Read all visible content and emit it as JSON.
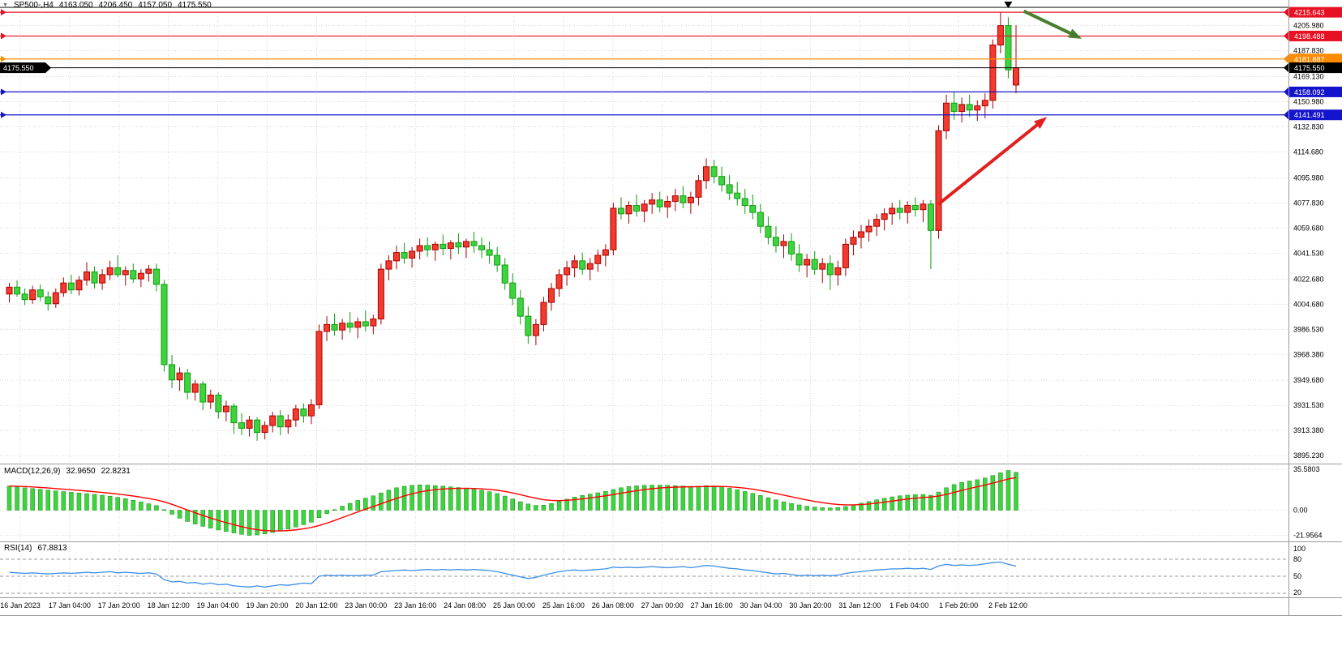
{
  "quote_bar": {
    "dropdown_icon": "▼",
    "symbol_period": "SP500-,H4",
    "open": "4163.050",
    "high": "4206.450",
    "low": "4157.050",
    "close": "4175.550"
  },
  "colors": {
    "bull": "#f23b2e",
    "bull_stroke": "#a80000",
    "bear": "#3fd43f",
    "bear_stroke": "#0e9c0e",
    "grid": "#d8d8d8",
    "separator": "#9a9a9a",
    "macd_histogram": "#3fd43f",
    "macd_histogram_stroke": "#128a12",
    "macd_signal": "#ff0000",
    "rsi_line": "#3b8fe8",
    "level_blue": "#1414cc",
    "level_red": "#e81123",
    "level_orange": "#ff8c00",
    "current_price_black": "#000000"
  },
  "chart_data": {
    "type": "candlestick",
    "symbol": "SP500-",
    "timeframe": "H4",
    "ohlc": [
      [
        4012,
        4020,
        4006,
        4017
      ],
      [
        4017,
        4022,
        4010,
        4012
      ],
      [
        4012,
        4016,
        4004,
        4008
      ],
      [
        4008,
        4018,
        4005,
        4015
      ],
      [
        4015,
        4019,
        4007,
        4010
      ],
      [
        4010,
        4014,
        4000,
        4005
      ],
      [
        4005,
        4016,
        4002,
        4013
      ],
      [
        4013,
        4024,
        4010,
        4020
      ],
      [
        4020,
        4026,
        4012,
        4015
      ],
      [
        4015,
        4025,
        4011,
        4022
      ],
      [
        4022,
        4035,
        4018,
        4028
      ],
      [
        4028,
        4032,
        4016,
        4020
      ],
      [
        4020,
        4030,
        4015,
        4026
      ],
      [
        4026,
        4036,
        4022,
        4031
      ],
      [
        4031,
        4040,
        4024,
        4026
      ],
      [
        4026,
        4032,
        4018,
        4029
      ],
      [
        4029,
        4034,
        4020,
        4023
      ],
      [
        4023,
        4030,
        4017,
        4027
      ],
      [
        4027,
        4033,
        4021,
        4030
      ],
      [
        4030,
        4034,
        4014,
        4019
      ],
      [
        4019,
        4022,
        3956,
        3961
      ],
      [
        3961,
        3968,
        3944,
        3950
      ],
      [
        3950,
        3959,
        3942,
        3955
      ],
      [
        3955,
        3958,
        3936,
        3941
      ],
      [
        3941,
        3950,
        3935,
        3947
      ],
      [
        3947,
        3949,
        3928,
        3934
      ],
      [
        3934,
        3943,
        3929,
        3939
      ],
      [
        3939,
        3941,
        3922,
        3927
      ],
      [
        3927,
        3935,
        3920,
        3931
      ],
      [
        3931,
        3933,
        3911,
        3919
      ],
      [
        3919,
        3926,
        3910,
        3915
      ],
      [
        3915,
        3924,
        3909,
        3921
      ],
      [
        3921,
        3923,
        3906,
        3912
      ],
      [
        3912,
        3920,
        3907,
        3917
      ],
      [
        3917,
        3927,
        3912,
        3924
      ],
      [
        3924,
        3928,
        3910,
        3916
      ],
      [
        3916,
        3925,
        3911,
        3921
      ],
      [
        3921,
        3932,
        3916,
        3929
      ],
      [
        3929,
        3933,
        3919,
        3924
      ],
      [
        3924,
        3936,
        3918,
        3932
      ],
      [
        3932,
        3990,
        3929,
        3985
      ],
      [
        3985,
        3996,
        3978,
        3990
      ],
      [
        3990,
        3998,
        3982,
        3986
      ],
      [
        3986,
        3994,
        3979,
        3991
      ],
      [
        3991,
        3999,
        3984,
        3988
      ],
      [
        3988,
        3995,
        3980,
        3992
      ],
      [
        3992,
        4000,
        3985,
        3989
      ],
      [
        3989,
        3997,
        3983,
        3994
      ],
      [
        3994,
        4034,
        3990,
        4030
      ],
      [
        4030,
        4040,
        4022,
        4036
      ],
      [
        4036,
        4047,
        4030,
        4042
      ],
      [
        4042,
        4049,
        4034,
        4038
      ],
      [
        4038,
        4046,
        4031,
        4043
      ],
      [
        4043,
        4052,
        4037,
        4047
      ],
      [
        4047,
        4053,
        4039,
        4044
      ],
      [
        4044,
        4050,
        4036,
        4048
      ],
      [
        4048,
        4055,
        4040,
        4045
      ],
      [
        4045,
        4051,
        4037,
        4049
      ],
      [
        4049,
        4056,
        4041,
        4046
      ],
      [
        4046,
        4052,
        4038,
        4050
      ],
      [
        4050,
        4057,
        4042,
        4047
      ],
      [
        4047,
        4053,
        4038,
        4044
      ],
      [
        4044,
        4050,
        4034,
        4040
      ],
      [
        4040,
        4046,
        4028,
        4033
      ],
      [
        4033,
        4038,
        4015,
        4020
      ],
      [
        4020,
        4027,
        4004,
        4009
      ],
      [
        4009,
        4015,
        3990,
        3996
      ],
      [
        3996,
        4003,
        3976,
        3982
      ],
      [
        3982,
        3994,
        3975,
        3990
      ],
      [
        3990,
        4010,
        3985,
        4006
      ],
      [
        4006,
        4020,
        4000,
        4016
      ],
      [
        4016,
        4030,
        4010,
        4026
      ],
      [
        4026,
        4036,
        4018,
        4031
      ],
      [
        4031,
        4040,
        4024,
        4036
      ],
      [
        4036,
        4042,
        4026,
        4030
      ],
      [
        4030,
        4038,
        4022,
        4034
      ],
      [
        4034,
        4044,
        4028,
        4040
      ],
      [
        4040,
        4048,
        4032,
        4044
      ],
      [
        4044,
        4078,
        4040,
        4074
      ],
      [
        4074,
        4082,
        4066,
        4070
      ],
      [
        4070,
        4079,
        4063,
        4076
      ],
      [
        4076,
        4084,
        4068,
        4072
      ],
      [
        4072,
        4080,
        4064,
        4077
      ],
      [
        4077,
        4085,
        4070,
        4080
      ],
      [
        4080,
        4086,
        4071,
        4075
      ],
      [
        4075,
        4083,
        4067,
        4079
      ],
      [
        4079,
        4088,
        4072,
        4083
      ],
      [
        4083,
        4090,
        4074,
        4078
      ],
      [
        4078,
        4086,
        4070,
        4082
      ],
      [
        4082,
        4098,
        4076,
        4094
      ],
      [
        4094,
        4110,
        4088,
        4104
      ],
      [
        4104,
        4109,
        4092,
        4097
      ],
      [
        4097,
        4104,
        4086,
        4091
      ],
      [
        4091,
        4098,
        4080,
        4085
      ],
      [
        4085,
        4093,
        4076,
        4081
      ],
      [
        4081,
        4088,
        4070,
        4076
      ],
      [
        4076,
        4084,
        4066,
        4071
      ],
      [
        4071,
        4077,
        4056,
        4061
      ],
      [
        4061,
        4068,
        4048,
        4053
      ],
      [
        4053,
        4061,
        4042,
        4047
      ],
      [
        4047,
        4055,
        4038,
        4050
      ],
      [
        4050,
        4056,
        4036,
        4041
      ],
      [
        4041,
        4048,
        4028,
        4033
      ],
      [
        4033,
        4041,
        4024,
        4037
      ],
      [
        4037,
        4043,
        4026,
        4030
      ],
      [
        4030,
        4038,
        4020,
        4034
      ],
      [
        4034,
        4040,
        4015,
        4026
      ],
      [
        4026,
        4036,
        4018,
        4031
      ],
      [
        4031,
        4052,
        4025,
        4048
      ],
      [
        4048,
        4058,
        4040,
        4053
      ],
      [
        4053,
        4062,
        4045,
        4057
      ],
      [
        4057,
        4066,
        4050,
        4061
      ],
      [
        4061,
        4070,
        4054,
        4066
      ],
      [
        4066,
        4074,
        4058,
        4070
      ],
      [
        4070,
        4078,
        4062,
        4074
      ],
      [
        4074,
        4080,
        4066,
        4071
      ],
      [
        4071,
        4079,
        4063,
        4076
      ],
      [
        4076,
        4082,
        4068,
        4073
      ],
      [
        4073,
        4080,
        4064,
        4077
      ],
      [
        4077,
        4080,
        4030,
        4058
      ],
      [
        4058,
        4134,
        4052,
        4130
      ],
      [
        4130,
        4156,
        4124,
        4150
      ],
      [
        4150,
        4158,
        4138,
        4144
      ],
      [
        4144,
        4154,
        4136,
        4149
      ],
      [
        4149,
        4156,
        4140,
        4145
      ],
      [
        4145,
        4152,
        4137,
        4148
      ],
      [
        4148,
        4157,
        4139,
        4152
      ],
      [
        4152,
        4196,
        4146,
        4192
      ],
      [
        4192,
        4215.6,
        4186,
        4206
      ],
      [
        4206,
        4212,
        4168,
        4174
      ],
      [
        4163.05,
        4206.45,
        4157.05,
        4175.55
      ]
    ],
    "price_axis_ticks": [
      "4205.980",
      "4187.830",
      "4169.130",
      "4150.980",
      "4132.830",
      "4114.680",
      "4095.980",
      "4077.830",
      "4059.680",
      "4041.530",
      "4022.680",
      "4004.680",
      "3986.530",
      "3968.380",
      "3949.680",
      "3931.530",
      "3913.380",
      "3895.230"
    ],
    "price_lines": [
      {
        "label": "4215.643",
        "price": 4215.643,
        "color": "#e81123",
        "badge": true
      },
      {
        "label": "4198.488",
        "price": 4198.488,
        "color": "#e81123",
        "badge": true
      },
      {
        "label": "4181.887",
        "price": 4181.887,
        "color": "#ff8c00",
        "badge": true
      },
      {
        "label": "4158.092",
        "price": 4158.092,
        "color": "#1414cc",
        "badge": true
      },
      {
        "label": "4141.491",
        "price": 4141.491,
        "color": "#1414cc",
        "badge": true
      },
      {
        "label": "",
        "price": 4219.2,
        "color": "#2a2a2a",
        "badge": false
      }
    ],
    "current_price": {
      "label": "4175.550",
      "price": 4175.55,
      "color": "#000000"
    },
    "time_axis_ticks": [
      "16 Jan 2023",
      "17 Jan 04:00",
      "17 Jan 20:00",
      "18 Jan 12:00",
      "19 Jan 04:00",
      "19 Jan 20:00",
      "20 Jan 12:00",
      "23 Jan 00:00",
      "23 Jan 16:00",
      "24 Jan 08:00",
      "25 Jan 00:00",
      "25 Jan 16:00",
      "26 Jan 08:00",
      "27 Jan 00:00",
      "27 Jan 16:00",
      "30 Jan 04:00",
      "30 Jan 20:00",
      "31 Jan 12:00",
      "1 Feb 04:00",
      "1 Feb 20:00",
      "2 Feb 12:00"
    ],
    "indicators": [
      {
        "name": "MACD",
        "title": "MACD(12,26,9)",
        "main_value": "32.9650",
        "signal_value": "22.8231",
        "axis_ticks": [
          "35.5803",
          "0.00",
          "-21.9564"
        ],
        "main": [
          21.0,
          20.2,
          19.5,
          18.8,
          18.2,
          17.5,
          16.8,
          16.2,
          15.6,
          15.0,
          14.4,
          13.8,
          13.0,
          12.2,
          11.2,
          10.0,
          8.6,
          7.2,
          5.6,
          4.0,
          0.5,
          -3.5,
          -7.0,
          -9.8,
          -12.0,
          -14.0,
          -15.6,
          -17.2,
          -18.6,
          -19.8,
          -21.0,
          -21.9,
          -21.5,
          -20.6,
          -19.4,
          -18.0,
          -16.4,
          -14.6,
          -12.6,
          -10.4,
          -6.5,
          -3.0,
          0.5,
          3.5,
          6.0,
          8.5,
          10.5,
          12.5,
          15.0,
          17.5,
          19.5,
          20.8,
          21.6,
          22.0,
          21.8,
          21.4,
          20.9,
          20.3,
          19.7,
          19.1,
          18.3,
          17.3,
          16.1,
          14.5,
          12.3,
          9.8,
          7.4,
          5.4,
          4.2,
          4.4,
          5.8,
          7.6,
          9.6,
          11.4,
          12.8,
          14.0,
          15.1,
          16.3,
          18.0,
          19.5,
          20.5,
          21.2,
          21.6,
          21.8,
          21.8,
          21.6,
          21.3,
          21.0,
          20.7,
          20.9,
          21.3,
          21.1,
          20.4,
          19.3,
          17.9,
          16.3,
          14.6,
          12.8,
          10.9,
          9.0,
          7.3,
          5.9,
          4.6,
          3.5,
          2.7,
          2.2,
          2.0,
          2.3,
          3.2,
          4.6,
          6.1,
          7.6,
          9.1,
          10.4,
          11.6,
          12.5,
          13.1,
          13.5,
          13.6,
          13.0,
          15.8,
          19.5,
          22.3,
          24.2,
          25.4,
          26.5,
          28.0,
          30.2,
          32.5,
          34.5,
          32.97
        ]
      },
      {
        "name": "RSI",
        "title": "RSI(14)",
        "value": "67.8813",
        "axis_ticks": [
          "100",
          "80",
          "50",
          "20"
        ],
        "levels": [
          80,
          50,
          20
        ],
        "values": [
          57,
          56,
          55,
          56,
          55,
          54,
          55,
          56,
          55,
          56,
          57,
          56,
          57,
          58,
          56,
          57,
          56,
          55,
          56,
          54,
          44,
          40,
          41,
          38,
          39,
          36,
          38,
          35,
          36,
          33,
          32,
          31,
          33,
          31,
          33,
          35,
          34,
          36,
          38,
          37,
          50,
          52,
          51,
          52,
          51,
          51,
          52,
          52,
          58,
          59,
          60,
          61,
          60,
          61,
          62,
          61,
          62,
          61,
          62,
          61,
          62,
          61,
          60,
          58,
          55,
          52,
          49,
          46,
          48,
          52,
          55,
          58,
          60,
          61,
          60,
          61,
          62,
          63,
          66,
          65,
          66,
          65,
          66,
          67,
          66,
          65,
          66,
          67,
          65,
          67,
          69,
          68,
          66,
          64,
          63,
          61,
          60,
          58,
          56,
          54,
          55,
          53,
          51,
          52,
          51,
          52,
          51,
          52,
          55,
          57,
          58,
          60,
          61,
          62,
          63,
          63,
          64,
          63,
          64,
          62,
          68,
          71,
          69,
          70,
          69,
          70,
          72,
          74,
          75,
          71,
          67.88
        ]
      }
    ],
    "annotations": [
      {
        "type": "arrow",
        "name": "bearish-projection-arrow",
        "color": "#4a7d2b",
        "from_bar": 131,
        "from_price": 4216.5,
        "to_bar": 138.5,
        "to_price": 4196.5
      },
      {
        "type": "arrow",
        "name": "bullish-trend-arrow",
        "color": "#e02020",
        "from_bar": 120,
        "from_price": 4077,
        "to_bar": 134,
        "to_price": 4140
      },
      {
        "type": "marker",
        "name": "current-bar-marker",
        "color": "#000000",
        "bar": 129
      }
    ]
  }
}
